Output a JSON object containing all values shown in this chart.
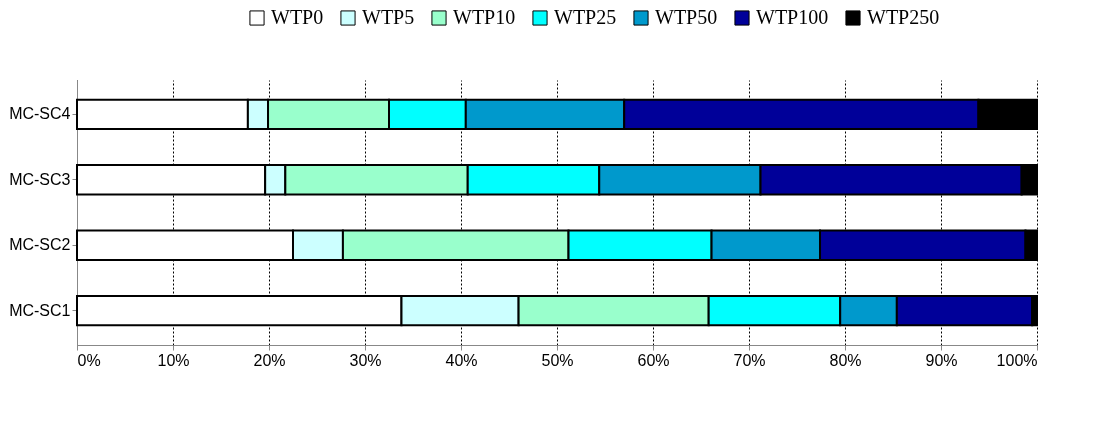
{
  "chart_data": {
    "type": "bar",
    "orientation": "horizontal",
    "stacked": true,
    "categories": [
      "MC-SC4",
      "MC-SC3",
      "MC-SC2",
      "MC-SC1"
    ],
    "series": [
      {
        "name": "WTP0",
        "color": "#ffffff",
        "values": [
          17.8,
          19.6,
          22.5,
          33.8
        ]
      },
      {
        "name": "WTP5",
        "color": "#ccffff",
        "values": [
          2.1,
          2.1,
          5.2,
          12.2
        ]
      },
      {
        "name": "WTP10",
        "color": "#99ffcc",
        "values": [
          12.6,
          19.0,
          23.5,
          19.8
        ]
      },
      {
        "name": "WTP25",
        "color": "#00ffff",
        "values": [
          8.0,
          13.7,
          14.9,
          13.7
        ]
      },
      {
        "name": "WTP50",
        "color": "#0099cc",
        "values": [
          16.5,
          16.8,
          11.3,
          5.9
        ]
      },
      {
        "name": "WTP100",
        "color": "#000099",
        "values": [
          36.9,
          27.2,
          21.4,
          14.1
        ]
      },
      {
        "name": "WTP250",
        "color": "#000000",
        "values": [
          6.1,
          1.6,
          1.2,
          0.5
        ]
      }
    ],
    "xlim": [
      0,
      100
    ],
    "xticks": [
      {
        "value": 0,
        "label": "0%"
      },
      {
        "value": 10,
        "label": "10%"
      },
      {
        "value": 20,
        "label": "20%"
      },
      {
        "value": 30,
        "label": "30%"
      },
      {
        "value": 40,
        "label": "40%"
      },
      {
        "value": 50,
        "label": "50%"
      },
      {
        "value": 60,
        "label": "60%"
      },
      {
        "value": 70,
        "label": "70%"
      },
      {
        "value": 80,
        "label": "80%"
      },
      {
        "value": 90,
        "label": "90%"
      },
      {
        "value": 100,
        "label": "100%"
      }
    ],
    "grid": "x",
    "legend": "top right"
  }
}
